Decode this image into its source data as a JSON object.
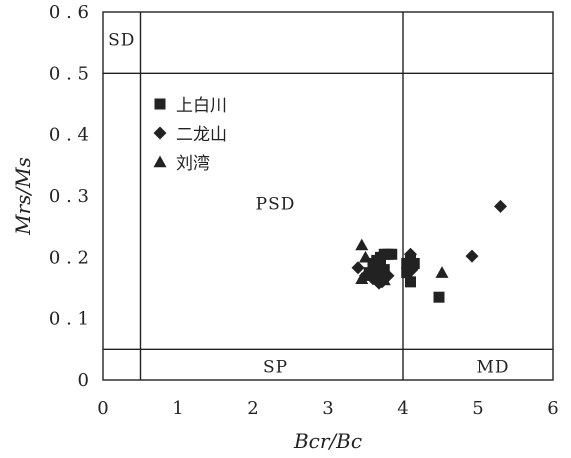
{
  "chart_data": {
    "type": "scatter",
    "xlabel": "Bcr/Bc",
    "ylabel": "Mrs/Ms",
    "xlim": [
      0,
      6
    ],
    "ylim": [
      0,
      0.6
    ],
    "x_ticks": [
      "0",
      "1",
      "2",
      "3",
      "4",
      "5",
      "6"
    ],
    "y_ticks": [
      "0",
      "0.1",
      "0.2",
      "0.3",
      "0.4",
      "0.5",
      "0.6"
    ],
    "grid": false,
    "legend_position": "top-left",
    "region_boundaries": {
      "x": [
        0.5,
        4
      ],
      "y": [
        0.05,
        0.5
      ]
    },
    "regions": [
      {
        "label": "SD",
        "x": 0.25,
        "y": 0.555
      },
      {
        "label": "PSD",
        "x": 2.3,
        "y": 0.288
      },
      {
        "label": "SP",
        "x": 2.3,
        "y": 0.022
      },
      {
        "label": "MD",
        "x": 5.2,
        "y": 0.022
      }
    ],
    "series": [
      {
        "name": "上白川",
        "marker": "square",
        "points": [
          [
            3.55,
            0.175
          ],
          [
            3.6,
            0.19
          ],
          [
            3.65,
            0.195
          ],
          [
            3.7,
            0.2
          ],
          [
            3.75,
            0.205
          ],
          [
            3.8,
            0.205
          ],
          [
            3.85,
            0.205
          ],
          [
            3.7,
            0.185
          ],
          [
            3.65,
            0.17
          ],
          [
            3.75,
            0.18
          ],
          [
            4.05,
            0.19
          ],
          [
            4.1,
            0.195
          ],
          [
            4.15,
            0.19
          ],
          [
            4.05,
            0.175
          ],
          [
            4.1,
            0.16
          ],
          [
            4.48,
            0.135
          ]
        ]
      },
      {
        "name": "二龙山",
        "marker": "diamond",
        "points": [
          [
            3.4,
            0.183
          ],
          [
            3.5,
            0.17
          ],
          [
            3.6,
            0.165
          ],
          [
            3.68,
            0.158
          ],
          [
            3.72,
            0.16
          ],
          [
            3.8,
            0.17
          ],
          [
            4.1,
            0.205
          ],
          [
            4.12,
            0.18
          ],
          [
            4.92,
            0.202
          ],
          [
            5.3,
            0.283
          ]
        ]
      },
      {
        "name": "刘湾",
        "marker": "triangle",
        "points": [
          [
            3.45,
            0.22
          ],
          [
            3.5,
            0.2
          ],
          [
            3.55,
            0.17
          ],
          [
            3.45,
            0.165
          ],
          [
            3.62,
            0.178
          ],
          [
            3.7,
            0.17
          ],
          [
            3.75,
            0.163
          ],
          [
            4.52,
            0.175
          ]
        ]
      }
    ]
  }
}
